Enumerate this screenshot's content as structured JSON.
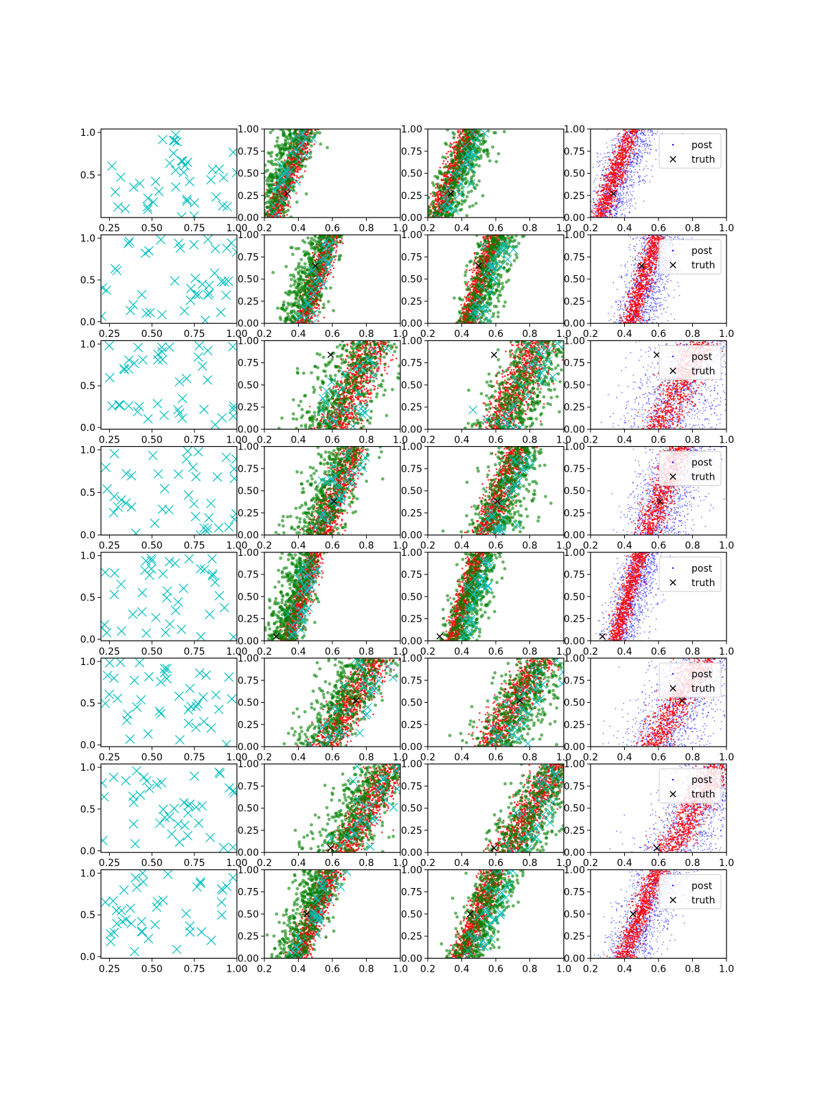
{
  "colors": {
    "train": "#00bfbf",
    "post": "#0000ff",
    "methodA": "#ff0000",
    "methodB": "#008000",
    "truth": "#000000",
    "frame": "#000000"
  },
  "legend_labels": [
    "post",
    "truth"
  ],
  "chart_data": {
    "type": "scatter",
    "layout": "8 rows x 4 columns grid of scatter subplots",
    "column_types": [
      "training-design",
      "method-comparison-a",
      "method-comparison-b",
      "posterior"
    ],
    "col1_axes": {
      "xlim": [
        0.2,
        1.0
      ],
      "xticks": [
        "0.25",
        "0.50",
        "0.75",
        "1.00"
      ],
      "yticks_default": [
        "0.5",
        "1.0"
      ],
      "yticks_zero": [
        "0.0",
        "0.5",
        "1.0"
      ]
    },
    "sample_axes": {
      "xlim": [
        0.2,
        1.0
      ],
      "ylim": [
        0.0,
        1.0
      ],
      "xticks": [
        "0.2",
        "0.4",
        "0.6",
        "0.8",
        "1.0"
      ],
      "yticks": [
        "0.00",
        "0.25",
        "0.50",
        "0.75",
        "1.00"
      ]
    },
    "legend": {
      "entries": [
        "post",
        "truth"
      ],
      "placement": "upper-right of column 4"
    },
    "rows": [
      {
        "truth": [
          0.335,
          0.27
        ],
        "post_band": {
          "x0": 0.3,
          "x1": 0.4,
          "slope": 0.1,
          "spread": 0.14
        },
        "ylim_col1": [
          0.0,
          1.04
        ],
        "col1_yticks": "default"
      },
      {
        "truth": [
          0.5,
          0.65
        ],
        "post_band": {
          "x0": 0.46,
          "x1": 0.56,
          "slope": 0.08,
          "spread": 0.14
        },
        "ylim_col1": [
          -0.02,
          1.04
        ],
        "col1_yticks": "zero"
      },
      {
        "truth": [
          0.59,
          0.84
        ],
        "post_band": {
          "x0": 0.62,
          "x1": 0.84,
          "slope": 0.12,
          "spread": 0.25
        },
        "ylim_col1": [
          -0.02,
          1.04
        ],
        "col1_yticks": "zero"
      },
      {
        "truth": [
          0.61,
          0.38
        ],
        "post_band": {
          "x0": 0.56,
          "x1": 0.7,
          "slope": 0.1,
          "spread": 0.2
        },
        "ylim_col1": [
          0.0,
          1.04
        ],
        "col1_yticks": "zero"
      },
      {
        "truth": [
          0.27,
          0.05
        ],
        "post_band": {
          "x0": 0.38,
          "x1": 0.46,
          "slope": 0.08,
          "spread": 0.14
        },
        "ylim_col1": [
          -0.02,
          1.04
        ],
        "col1_yticks": "zero"
      },
      {
        "truth": [
          0.74,
          0.52
        ],
        "post_band": {
          "x0": 0.62,
          "x1": 0.8,
          "slope": 0.15,
          "spread": 0.25
        },
        "ylim_col1": [
          -0.02,
          1.04
        ],
        "col1_yticks": "zero"
      },
      {
        "truth": [
          0.59,
          0.05
        ],
        "post_band": {
          "x0": 0.72,
          "x1": 0.9,
          "slope": 0.15,
          "spread": 0.25
        },
        "ylim_col1": [
          -0.02,
          1.04
        ],
        "col1_yticks": "zero"
      },
      {
        "truth": [
          0.45,
          0.5
        ],
        "post_band": {
          "x0": 0.44,
          "x1": 0.55,
          "slope": 0.1,
          "spread": 0.16
        },
        "ylim_col1": [
          -0.02,
          1.04
        ],
        "col1_yticks": "zero"
      }
    ]
  }
}
